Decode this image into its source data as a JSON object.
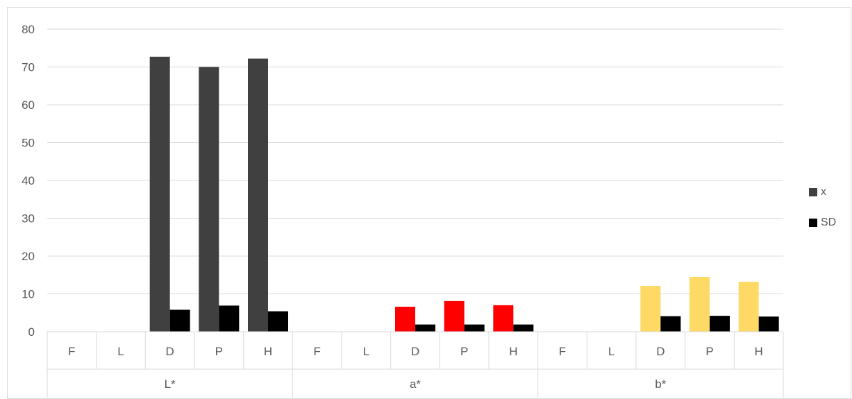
{
  "chart_data": {
    "type": "bar",
    "title": "",
    "xlabel": "",
    "ylabel": "",
    "ylim": [
      0,
      80
    ],
    "yticks": [
      0,
      10,
      20,
      30,
      40,
      50,
      60,
      70,
      80
    ],
    "grid": true,
    "legend_position": "right",
    "groups": [
      {
        "label": "L*",
        "categories": [
          "F",
          "L",
          "D",
          "P",
          "H"
        ],
        "x_color": "#404040"
      },
      {
        "label": "a*",
        "categories": [
          "F",
          "L",
          "D",
          "P",
          "H"
        ],
        "x_color": "#ff0000"
      },
      {
        "label": "b*",
        "categories": [
          "F",
          "L",
          "D",
          "P",
          "H"
        ],
        "x_color": "#ffd966"
      }
    ],
    "series": [
      {
        "name": "x",
        "color": "#404040",
        "values": [
          0,
          0,
          72.7,
          70.0,
          72.2,
          0,
          0,
          6.6,
          8.1,
          7.0,
          0,
          0,
          12.1,
          14.5,
          13.2
        ]
      },
      {
        "name": "SD",
        "color": "#000000",
        "values": [
          0,
          0,
          5.8,
          6.9,
          5.4,
          0,
          0,
          1.9,
          1.9,
          1.9,
          0,
          0,
          4.1,
          4.2,
          4.0
        ]
      }
    ]
  }
}
